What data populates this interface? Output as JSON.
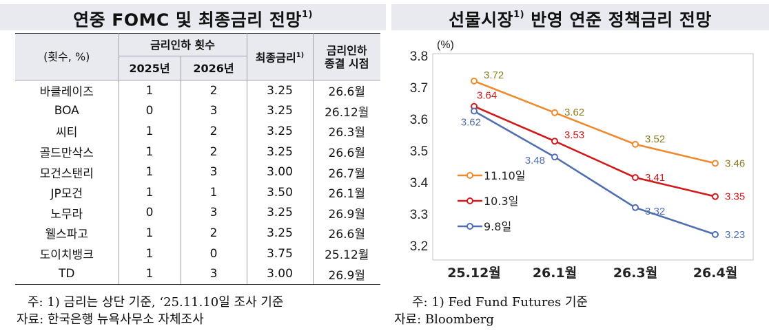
{
  "left": {
    "title": "연중 FOMC 및 최종금리 전망",
    "title_sup": "1)",
    "table": {
      "corner_label": "(횟수, %)",
      "group_header": "금리인하 횟수",
      "col_2025": "2025년",
      "col_2026": "2026년",
      "col_final_rate": "최종금리",
      "col_final_rate_sup": "1)",
      "col_end_time_line1": "금리인하",
      "col_end_time_line2": "종결 시점",
      "rows": [
        {
          "bank": "바클레이즈",
          "cuts_2025": "1",
          "cuts_2026": "2",
          "final_rate": "3.25",
          "end_time": "26.6월"
        },
        {
          "bank": "BOA",
          "cuts_2025": "0",
          "cuts_2026": "3",
          "final_rate": "3.25",
          "end_time": "26.12월"
        },
        {
          "bank": "씨티",
          "cuts_2025": "1",
          "cuts_2026": "2",
          "final_rate": "3.25",
          "end_time": "26.3월"
        },
        {
          "bank": "골드만삭스",
          "cuts_2025": "1",
          "cuts_2026": "2",
          "final_rate": "3.25",
          "end_time": "26.6월"
        },
        {
          "bank": "모건스탠리",
          "cuts_2025": "1",
          "cuts_2026": "3",
          "final_rate": "3.00",
          "end_time": "26.7월"
        },
        {
          "bank": "JP모건",
          "cuts_2025": "1",
          "cuts_2026": "1",
          "final_rate": "3.50",
          "end_time": "26.1월"
        },
        {
          "bank": "노무라",
          "cuts_2025": "0",
          "cuts_2026": "3",
          "final_rate": "3.25",
          "end_time": "26.9월"
        },
        {
          "bank": "웰스파고",
          "cuts_2025": "1",
          "cuts_2026": "2",
          "final_rate": "3.25",
          "end_time": "26.6월"
        },
        {
          "bank": "도이치뱅크",
          "cuts_2025": "1",
          "cuts_2026": "0",
          "final_rate": "3.75",
          "end_time": "25.12월"
        },
        {
          "bank": "TD",
          "cuts_2025": "1",
          "cuts_2026": "3",
          "final_rate": "3.00",
          "end_time": "26.9월"
        }
      ]
    },
    "note": "주: 1) 금리는 상단 기준, ‘25.11.10일 조사 기준",
    "source": "자료: 한국은행 뉴욕사무소 자체조사"
  },
  "right": {
    "title": "선물시장",
    "title_sup": "1)",
    "title_rest": " 반영 연준 정책금리 전망",
    "note": "주: 1) Fed Fund Futures 기준",
    "source": "자료: Bloomberg"
  },
  "chart_data": {
    "type": "line",
    "title": "선물시장1) 반영 연준 정책금리 전망",
    "ylabel": "(%)",
    "xlabel": "",
    "categories": [
      "25.12월",
      "26.1월",
      "26.3월",
      "26.4월"
    ],
    "ylim": [
      3.2,
      3.8
    ],
    "yticks": [
      "3.2",
      "3.3",
      "3.4",
      "3.5",
      "3.6",
      "3.7",
      "3.8"
    ],
    "grid": false,
    "legend_position": "left",
    "series": [
      {
        "name": "11.10일",
        "color": "#ee8a2c",
        "label_color": "#8a7a1f",
        "values": [
          3.72,
          3.62,
          3.52,
          3.46
        ],
        "labels": [
          "3.72",
          "3.62",
          "3.52",
          "3.46"
        ]
      },
      {
        "name": "10.3일",
        "color": "#d11a1a",
        "label_color": "#cc1a1a",
        "values": [
          3.64,
          3.53,
          3.415,
          3.355
        ],
        "labels": [
          "3.64",
          "3.53",
          "3.41",
          "3.35"
        ]
      },
      {
        "name": "9.8일",
        "color": "#4f6fb0",
        "label_color": "#4f6fb0",
        "values": [
          3.625,
          3.48,
          3.32,
          3.235
        ],
        "labels": [
          "3.62",
          "3.48",
          "3.32",
          "3.23"
        ]
      }
    ]
  }
}
